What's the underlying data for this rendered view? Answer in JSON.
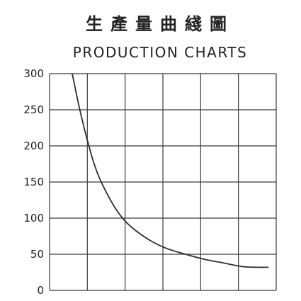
{
  "chart_data": {
    "type": "line",
    "title": "生產量曲綫圖",
    "subtitle": "PRODUCTION CHARTS",
    "xlabel": "",
    "ylabel": "",
    "ylim": [
      0,
      300
    ],
    "xlim": [
      0,
      6
    ],
    "y_ticks": [
      "0",
      "50",
      "100",
      "150",
      "200",
      "250",
      "300"
    ],
    "y_tick_values": [
      0,
      50,
      100,
      150,
      200,
      250,
      300
    ],
    "x_gridlines": [
      0,
      1,
      2,
      3,
      4,
      5,
      6
    ],
    "grid": true,
    "series": [
      {
        "x": [
          0.6,
          0.75,
          0.9,
          1.0,
          1.15,
          1.3,
          1.5,
          1.75,
          2.0,
          2.3,
          2.7,
          3.1,
          3.6,
          4.1,
          4.6,
          5.1,
          5.5,
          5.8
        ],
        "y": [
          300,
          262,
          228,
          208,
          180,
          158,
          136,
          113,
          96,
          82,
          68,
          58,
          50,
          43,
          38,
          33,
          32,
          32
        ]
      }
    ]
  }
}
